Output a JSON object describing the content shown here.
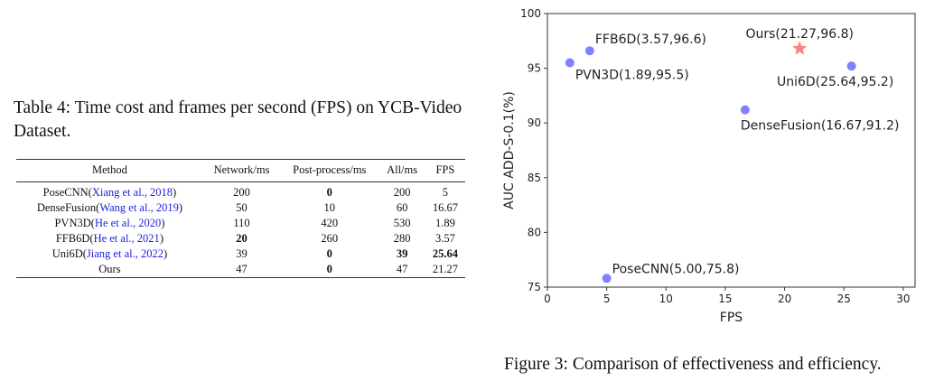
{
  "table": {
    "caption": "Table 4: Time cost and frames per second (FPS) on YCB-Video Dataset.",
    "headers": [
      "Method",
      "Network/ms",
      "Post-process/ms",
      "All/ms",
      "FPS"
    ],
    "rows": [
      {
        "method": "PoseCNN",
        "cite": "Xiang et al., 2018",
        "cells": [
          "200",
          "0",
          "200",
          "5"
        ],
        "bold": [
          false,
          true,
          false,
          false
        ]
      },
      {
        "method": "DenseFusion",
        "cite": "Wang et al., 2019",
        "cells": [
          "50",
          "10",
          "60",
          "16.67"
        ],
        "bold": [
          false,
          false,
          false,
          false
        ]
      },
      {
        "method": "PVN3D",
        "cite": "He et al., 2020",
        "cells": [
          "110",
          "420",
          "530",
          "1.89"
        ],
        "bold": [
          false,
          false,
          false,
          false
        ]
      },
      {
        "method": "FFB6D",
        "cite": "He et al., 2021",
        "cells": [
          "20",
          "260",
          "280",
          "3.57"
        ],
        "bold": [
          true,
          false,
          false,
          false
        ]
      },
      {
        "method": "Uni6D",
        "cite": "Jiang et al., 2022",
        "cells": [
          "39",
          "0",
          "39",
          "25.64"
        ],
        "bold": [
          false,
          true,
          true,
          true
        ]
      },
      {
        "method": "Ours",
        "cite": "",
        "cells": [
          "47",
          "0",
          "47",
          "21.27"
        ],
        "bold": [
          false,
          true,
          false,
          false
        ]
      }
    ]
  },
  "figure": {
    "caption": "Figure 3: Comparison of effectiveness and efficiency."
  },
  "chart_data": {
    "type": "scatter",
    "title": "",
    "xlabel": "FPS",
    "ylabel": "AUC ADD-S-0.1(%)",
    "xlim": [
      0,
      31
    ],
    "ylim": [
      75,
      100
    ],
    "xticks": [
      0,
      5,
      10,
      15,
      20,
      25,
      30
    ],
    "yticks": [
      75,
      80,
      85,
      90,
      95,
      100
    ],
    "grid": false,
    "points": [
      {
        "name": "FFB6D",
        "x": 3.57,
        "y": 96.6,
        "label": "FFB6D(3.57,96.6)",
        "marker": "circle",
        "color": "#6b6bff"
      },
      {
        "name": "PVN3D",
        "x": 1.89,
        "y": 95.5,
        "label": "PVN3D(1.89,95.5)",
        "marker": "circle",
        "color": "#6b6bff"
      },
      {
        "name": "Ours",
        "x": 21.27,
        "y": 96.8,
        "label": "Ours(21.27,96.8)",
        "marker": "star",
        "color": "#ff6060"
      },
      {
        "name": "Uni6D",
        "x": 25.64,
        "y": 95.2,
        "label": "Uni6D(25.64,95.2)",
        "marker": "circle",
        "color": "#6b6bff"
      },
      {
        "name": "DenseFusion",
        "x": 16.67,
        "y": 91.2,
        "label": "DenseFusion(16.67,91.2)",
        "marker": "circle",
        "color": "#6b6bff"
      },
      {
        "name": "PoseCNN",
        "x": 5.0,
        "y": 75.8,
        "label": "PoseCNN(5.00,75.8)",
        "marker": "circle",
        "color": "#6b6bff"
      }
    ]
  }
}
